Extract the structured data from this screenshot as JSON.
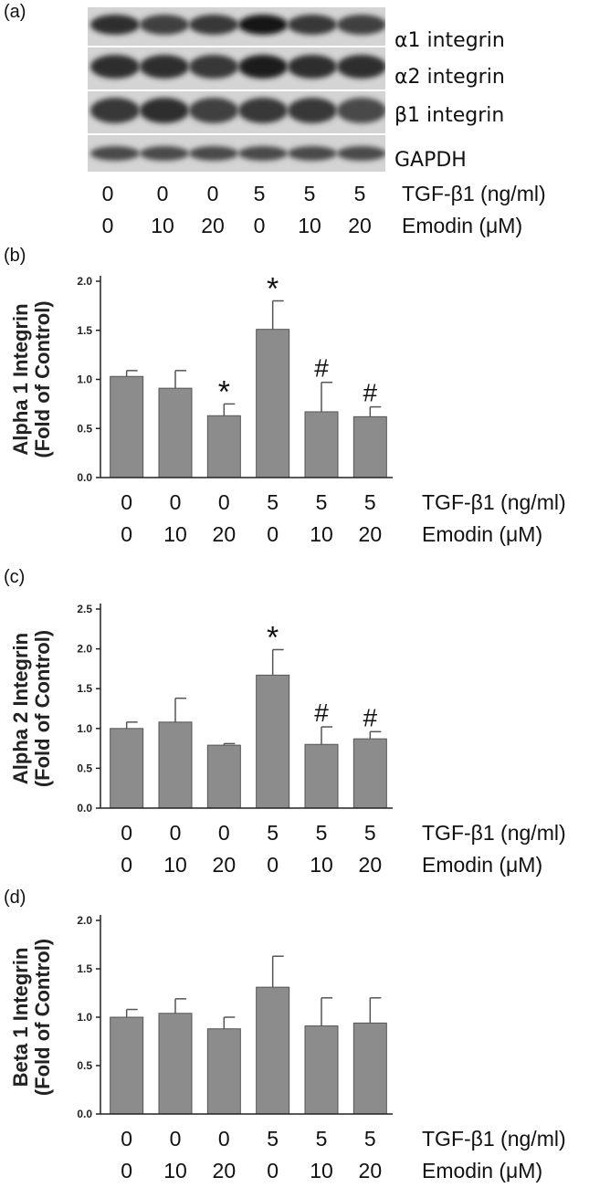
{
  "panel_a": {
    "label": "(a)",
    "rows": [
      {
        "label": "α1 integrin",
        "intensity": [
          0.85,
          0.75,
          0.8,
          1.0,
          0.8,
          0.75
        ]
      },
      {
        "label": "α2 integrin",
        "intensity": [
          0.85,
          0.85,
          0.8,
          0.95,
          0.85,
          0.85
        ]
      },
      {
        "label": "β1 integrin",
        "intensity": [
          0.8,
          0.85,
          0.75,
          0.8,
          0.8,
          0.7
        ]
      },
      {
        "label": "GAPDH",
        "intensity": [
          0.7,
          0.7,
          0.7,
          0.7,
          0.7,
          0.7
        ]
      }
    ],
    "conditions": {
      "tgf_label": "TGF-β1 (ng/ml)",
      "emodin_label": "Emodin (μM)",
      "tgf": [
        "0",
        "0",
        "0",
        "5",
        "5",
        "5"
      ],
      "emodin": [
        "0",
        "10",
        "20",
        "0",
        "10",
        "20"
      ]
    }
  },
  "colors": {
    "bar_fill": "#8c8c8c",
    "bar_stroke": "#555555",
    "axis": "#222222"
  },
  "chart_data": [
    {
      "type": "bar",
      "panel": "(b)",
      "ylabel": [
        "Alpha 1 Integrin",
        "(Fold of Control)"
      ],
      "ylim": [
        0,
        2.0
      ],
      "yticks": [
        "0.0",
        "0.5",
        "1.0",
        "1.5",
        "2.0"
      ],
      "values": [
        1.03,
        0.91,
        0.63,
        1.51,
        0.67,
        0.62
      ],
      "errors": [
        0.06,
        0.18,
        0.12,
        0.29,
        0.3,
        0.1
      ],
      "annotations": [
        "",
        "",
        "*",
        "*",
        "#",
        "#"
      ],
      "tgf": [
        "0",
        "0",
        "0",
        "5",
        "5",
        "5"
      ],
      "emodin": [
        "0",
        "10",
        "20",
        "0",
        "10",
        "20"
      ],
      "tgf_label": "TGF-β1 (ng/ml)",
      "emodin_label": "Emodin (μM)"
    },
    {
      "type": "bar",
      "panel": "(c)",
      "ylabel": [
        "Alpha 2 Integrin",
        "(Fold of Control)"
      ],
      "ylim": [
        0,
        2.5
      ],
      "yticks": [
        "0.0",
        "0.5",
        "1.0",
        "1.5",
        "2.0",
        "2.5"
      ],
      "values": [
        1.0,
        1.08,
        0.79,
        1.67,
        0.8,
        0.87
      ],
      "errors": [
        0.08,
        0.3,
        0.02,
        0.32,
        0.22,
        0.09
      ],
      "annotations": [
        "",
        "",
        "",
        "*",
        "#",
        "#"
      ],
      "tgf": [
        "0",
        "0",
        "0",
        "5",
        "5",
        "5"
      ],
      "emodin": [
        "0",
        "10",
        "20",
        "0",
        "10",
        "20"
      ],
      "tgf_label": "TGF-β1 (ng/ml)",
      "emodin_label": "Emodin (μM)"
    },
    {
      "type": "bar",
      "panel": "(d)",
      "ylabel": [
        "Beta 1 Integrin",
        "(Fold of Control)"
      ],
      "ylim": [
        0,
        2.0
      ],
      "yticks": [
        "0.0",
        "0.5",
        "1.0",
        "1.5",
        "2.0"
      ],
      "values": [
        1.0,
        1.04,
        0.88,
        1.31,
        0.91,
        0.94
      ],
      "errors": [
        0.08,
        0.15,
        0.12,
        0.32,
        0.29,
        0.26
      ],
      "annotations": [
        "",
        "",
        "",
        "",
        "",
        ""
      ],
      "tgf": [
        "0",
        "0",
        "0",
        "5",
        "5",
        "5"
      ],
      "emodin": [
        "0",
        "10",
        "20",
        "0",
        "10",
        "20"
      ],
      "tgf_label": "TGF-β1 (ng/ml)",
      "emodin_label": "Emodin (μM)"
    }
  ]
}
